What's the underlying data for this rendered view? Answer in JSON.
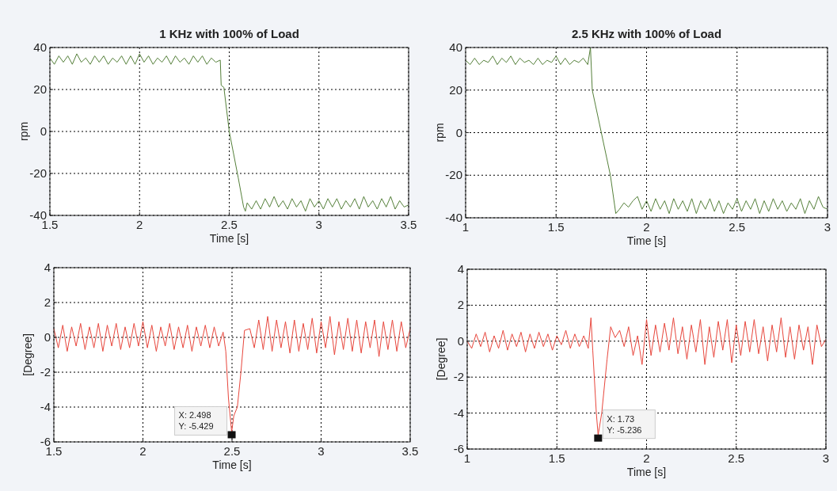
{
  "chart_data": [
    {
      "type": "line",
      "title": "1 KHz with 100% of Load",
      "xlabel": "Time [s]",
      "ylabel": "rpm",
      "xlim": [
        1.5,
        3.5
      ],
      "xticks": [
        1.5,
        2,
        2.5,
        3,
        3.5
      ],
      "ylim": [
        -40,
        40
      ],
      "yticks": [
        -40,
        -20,
        0,
        20,
        40
      ],
      "grid": true,
      "series": [
        {
          "color": "#55803a",
          "x": [
            1.5,
            1.525,
            1.55,
            1.575,
            1.6,
            1.625,
            1.65,
            1.675,
            1.7,
            1.725,
            1.75,
            1.775,
            1.8,
            1.825,
            1.85,
            1.875,
            1.9,
            1.925,
            1.95,
            1.975,
            2,
            2.025,
            2.05,
            2.075,
            2.1,
            2.125,
            2.15,
            2.175,
            2.2,
            2.225,
            2.25,
            2.275,
            2.3,
            2.325,
            2.35,
            2.375,
            2.4,
            2.425,
            2.45,
            2.455,
            2.47,
            2.5,
            2.55,
            2.58,
            2.59,
            2.6,
            2.625,
            2.65,
            2.675,
            2.7,
            2.725,
            2.75,
            2.775,
            2.8,
            2.825,
            2.85,
            2.875,
            2.9,
            2.925,
            2.95,
            2.975,
            3,
            3.025,
            3.05,
            3.075,
            3.1,
            3.125,
            3.15,
            3.175,
            3.2,
            3.225,
            3.25,
            3.275,
            3.3,
            3.325,
            3.35,
            3.375,
            3.4,
            3.425,
            3.45,
            3.475,
            3.5
          ],
          "values": [
            35,
            32,
            36,
            33,
            36,
            32,
            37,
            33,
            35,
            32,
            36,
            33,
            36,
            32,
            35,
            33,
            36,
            32,
            36,
            32,
            37,
            33,
            36,
            32,
            35,
            33,
            36,
            32,
            36,
            33,
            35,
            32,
            36,
            33,
            36,
            32,
            35,
            33,
            34,
            22,
            21,
            0,
            -22,
            -36,
            -38,
            -34,
            -37,
            -33,
            -37,
            -32,
            -36,
            -31,
            -36,
            -33,
            -37,
            -32,
            -36,
            -33,
            -38,
            -32,
            -36,
            -33,
            -37,
            -32,
            -36,
            -32,
            -37,
            -33,
            -36,
            -32,
            -37,
            -31,
            -36,
            -33,
            -37,
            -32,
            -36,
            -31,
            -37,
            -33,
            -36,
            -35
          ]
        }
      ]
    },
    {
      "type": "line",
      "title": "2.5 KHz with 100% of Load",
      "xlabel": "Time [s]",
      "ylabel": "rpm",
      "xlim": [
        1,
        3
      ],
      "xticks": [
        1,
        1.5,
        2,
        2.5,
        3
      ],
      "ylim": [
        -40,
        40
      ],
      "yticks": [
        -40,
        -20,
        0,
        20,
        40
      ],
      "grid": true,
      "series": [
        {
          "color": "#55803a",
          "x": [
            1,
            1.025,
            1.05,
            1.075,
            1.1,
            1.125,
            1.15,
            1.175,
            1.2,
            1.225,
            1.25,
            1.275,
            1.3,
            1.325,
            1.35,
            1.375,
            1.4,
            1.425,
            1.45,
            1.475,
            1.5,
            1.525,
            1.55,
            1.575,
            1.6,
            1.625,
            1.65,
            1.675,
            1.69,
            1.7,
            1.75,
            1.8,
            1.83,
            1.85,
            1.875,
            1.9,
            1.925,
            1.95,
            1.975,
            2,
            2.025,
            2.05,
            2.075,
            2.1,
            2.125,
            2.15,
            2.175,
            2.2,
            2.225,
            2.25,
            2.275,
            2.3,
            2.325,
            2.35,
            2.375,
            2.4,
            2.425,
            2.45,
            2.475,
            2.5,
            2.525,
            2.55,
            2.575,
            2.6,
            2.625,
            2.65,
            2.675,
            2.7,
            2.725,
            2.75,
            2.775,
            2.8,
            2.825,
            2.85,
            2.875,
            2.9,
            2.925,
            2.95,
            2.975,
            3
          ],
          "values": [
            34,
            32,
            35,
            32,
            34,
            33,
            36,
            32,
            35,
            33,
            36,
            32,
            35,
            33,
            34,
            32,
            35,
            32,
            34,
            33,
            36,
            32,
            35,
            32,
            34,
            33,
            35,
            32,
            40,
            20,
            0,
            -20,
            -38,
            -36,
            -33,
            -35,
            -32,
            -30,
            -36,
            -32,
            -37,
            -31,
            -36,
            -32,
            -38,
            -31,
            -36,
            -32,
            -37,
            -31,
            -38,
            -32,
            -36,
            -31,
            -37,
            -32,
            -38,
            -33,
            -36,
            -31,
            -37,
            -32,
            -36,
            -31,
            -38,
            -32,
            -37,
            -31,
            -36,
            -32,
            -37,
            -33,
            -36,
            -31,
            -38,
            -32,
            -36,
            -30,
            -35,
            -36
          ]
        }
      ]
    },
    {
      "type": "line",
      "xlabel": "Time [s]",
      "ylabel": "[Degree]",
      "xlim": [
        1.5,
        3.5
      ],
      "xticks": [
        1.5,
        2,
        2.5,
        3,
        3.5
      ],
      "ylim": [
        -6,
        4
      ],
      "yticks": [
        -6,
        -4,
        -2,
        0,
        2,
        4
      ],
      "grid": true,
      "annotations": [
        {
          "text": "X: 2.498\nY: -5.429",
          "x": 2.498,
          "y": -5.429
        }
      ],
      "series": [
        {
          "color": "#e8463c",
          "x": [
            1.5,
            1.525,
            1.55,
            1.575,
            1.6,
            1.625,
            1.65,
            1.675,
            1.7,
            1.725,
            1.75,
            1.775,
            1.8,
            1.825,
            1.85,
            1.875,
            1.9,
            1.925,
            1.95,
            1.975,
            2,
            2.025,
            2.05,
            2.075,
            2.1,
            2.125,
            2.15,
            2.175,
            2.2,
            2.225,
            2.25,
            2.275,
            2.3,
            2.325,
            2.35,
            2.375,
            2.4,
            2.425,
            2.45,
            2.465,
            2.48,
            2.498,
            2.51,
            2.53,
            2.55,
            2.57,
            2.6,
            2.625,
            2.65,
            2.675,
            2.7,
            2.725,
            2.75,
            2.775,
            2.8,
            2.825,
            2.85,
            2.875,
            2.9,
            2.925,
            2.95,
            2.975,
            3,
            3.025,
            3.05,
            3.075,
            3.1,
            3.125,
            3.15,
            3.175,
            3.2,
            3.225,
            3.25,
            3.275,
            3.3,
            3.325,
            3.35,
            3.375,
            3.4,
            3.425,
            3.45,
            3.475,
            3.5
          ],
          "values": [
            0.5,
            -0.6,
            0.7,
            -0.8,
            0.6,
            -0.5,
            0.8,
            -0.7,
            0.6,
            -0.6,
            0.8,
            -0.8,
            0.7,
            -0.5,
            0.8,
            -0.7,
            0.6,
            -0.6,
            0.8,
            -0.5,
            0.9,
            -0.6,
            0.7,
            -0.8,
            0.6,
            -0.5,
            0.8,
            -0.7,
            0.6,
            -0.6,
            0.7,
            -0.8,
            0.6,
            -0.5,
            0.7,
            -0.6,
            0.6,
            -0.5,
            0.3,
            -0.8,
            -3.5,
            -5.429,
            -4.5,
            -4,
            -2,
            0.4,
            0.5,
            -0.6,
            1,
            -0.7,
            1.2,
            -0.8,
            1,
            -0.6,
            0.9,
            -0.9,
            1,
            -0.8,
            0.8,
            -0.7,
            1.1,
            -0.9,
            0.9,
            -0.6,
            1.2,
            -1,
            0.9,
            -0.7,
            1.1,
            -0.8,
            1,
            -0.9,
            0.9,
            -0.6,
            1,
            -1.1,
            0.9,
            -0.7,
            1,
            -0.8,
            0.9,
            -0.6,
            0.5
          ]
        }
      ]
    },
    {
      "type": "line",
      "xlabel": "Time [s]",
      "ylabel": "[Degree]",
      "xlim": [
        1,
        3
      ],
      "xticks": [
        1,
        1.5,
        2,
        2.5,
        3
      ],
      "ylim": [
        -6,
        4
      ],
      "yticks": [
        -6,
        -4,
        -2,
        0,
        2,
        4
      ],
      "grid": true,
      "annotations": [
        {
          "text": "X: 1.73\nY: -5.236",
          "x": 1.73,
          "y": -5.236
        }
      ],
      "series": [
        {
          "color": "#e8463c",
          "x": [
            1,
            1.025,
            1.05,
            1.075,
            1.1,
            1.125,
            1.15,
            1.175,
            1.2,
            1.225,
            1.25,
            1.275,
            1.3,
            1.325,
            1.35,
            1.375,
            1.4,
            1.425,
            1.45,
            1.475,
            1.5,
            1.525,
            1.55,
            1.575,
            1.6,
            1.625,
            1.65,
            1.675,
            1.69,
            1.7,
            1.72,
            1.73,
            1.75,
            1.78,
            1.8,
            1.825,
            1.85,
            1.875,
            1.9,
            1.925,
            1.95,
            1.975,
            2,
            2.025,
            2.05,
            2.075,
            2.1,
            2.125,
            2.15,
            2.175,
            2.2,
            2.225,
            2.25,
            2.275,
            2.3,
            2.325,
            2.35,
            2.375,
            2.4,
            2.425,
            2.45,
            2.475,
            2.5,
            2.525,
            2.55,
            2.575,
            2.6,
            2.625,
            2.65,
            2.675,
            2.7,
            2.725,
            2.75,
            2.775,
            2.8,
            2.825,
            2.85,
            2.875,
            2.9,
            2.925,
            2.95,
            2.975,
            3
          ],
          "values": [
            0,
            -0.4,
            0.4,
            -0.3,
            0.5,
            -0.6,
            0.3,
            -0.4,
            0.6,
            -0.5,
            0.4,
            -0.3,
            0.5,
            -0.6,
            0.4,
            -0.4,
            0.5,
            -0.3,
            0.4,
            -0.5,
            0.3,
            -0.2,
            0.6,
            -0.4,
            0.4,
            -0.3,
            0.3,
            -0.4,
            1.3,
            -0.5,
            -4,
            -5.236,
            -4,
            -1,
            0.8,
            0.2,
            0.6,
            -0.3,
            0.8,
            -0.8,
            0.3,
            -1.3,
            1.2,
            -0.8,
            0.9,
            -0.6,
            1,
            -0.5,
            1.3,
            -0.7,
            0.8,
            -1,
            0.9,
            -0.6,
            1.2,
            -1.3,
            0.8,
            -0.9,
            1.1,
            -0.5,
            1.2,
            -1.2,
            0.9,
            -0.8,
            1.1,
            -0.6,
            1.2,
            -0.7,
            0.8,
            -1.1,
            0.9,
            -0.6,
            1.3,
            -0.9,
            0.8,
            -1,
            0.9,
            -0.5,
            0.8,
            -1.3,
            0.9,
            -0.3,
            0.1
          ]
        }
      ]
    }
  ]
}
